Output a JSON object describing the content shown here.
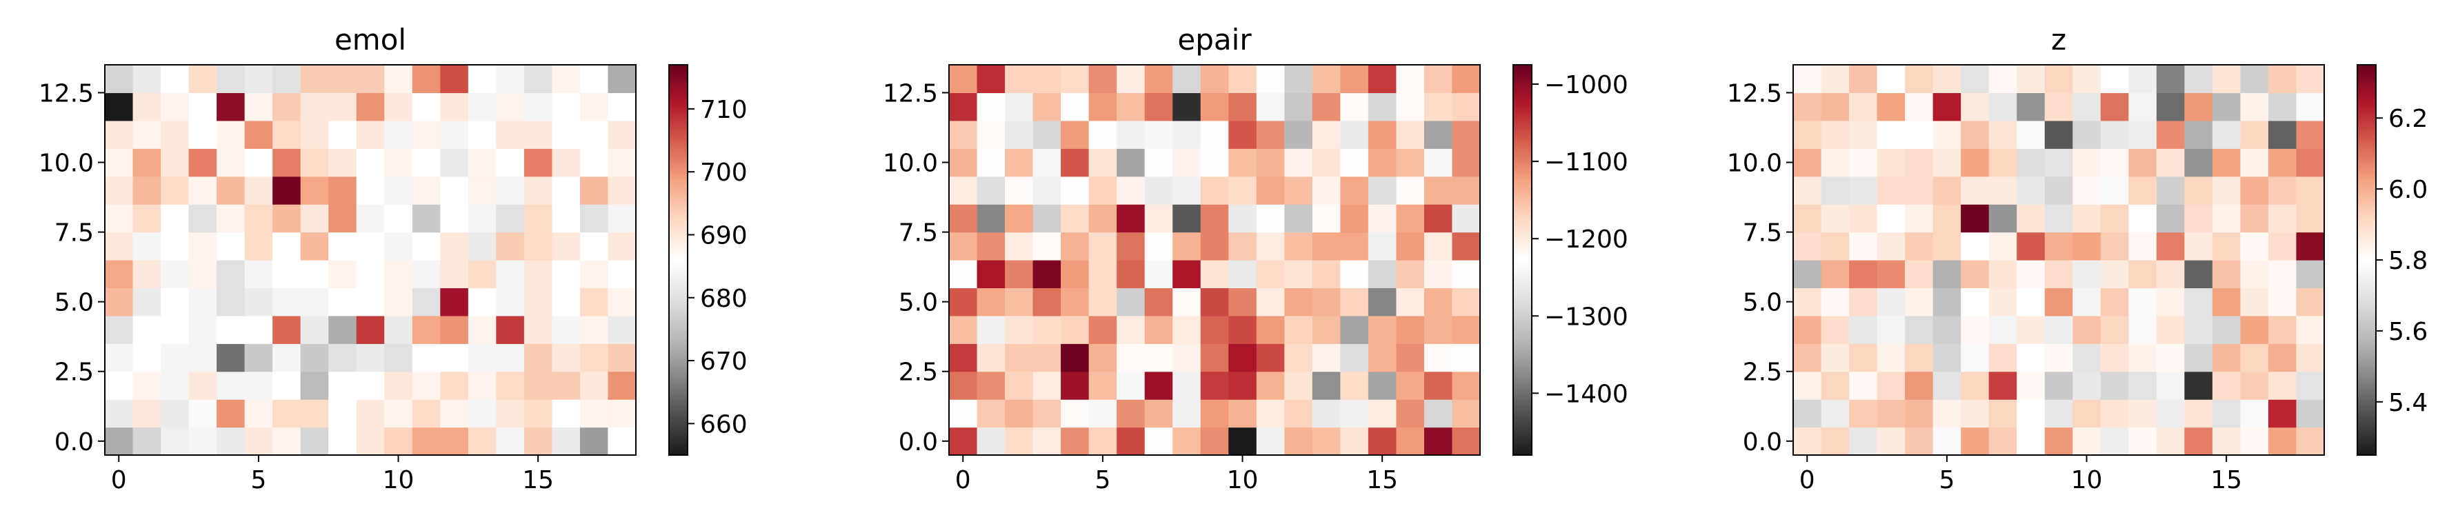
{
  "chart_data": [
    {
      "type": "heatmap",
      "title": "emol",
      "xlabel": "",
      "ylabel": "",
      "x_ticks": [
        "0",
        "5",
        "10",
        "15"
      ],
      "y_ticks": [
        "0.0",
        "2.5",
        "5.0",
        "7.5",
        "10.0",
        "12.5"
      ],
      "x_range": [
        -0.5,
        18.5
      ],
      "y_range": [
        -0.5,
        13.5
      ],
      "cell_grid": {
        "columns": 19,
        "rows": 14,
        "x_start": 0,
        "y_start": 0,
        "step": 1
      },
      "colormap": "RdGy_r",
      "colorbar": {
        "min": 655,
        "max": 717,
        "ticks": [
          "660",
          "670",
          "680",
          "690",
          "700",
          "710"
        ]
      },
      "values": [
        [
          672,
          678,
          683,
          684,
          682,
          690,
          688,
          678,
          686,
          690,
          693,
          698,
          698,
          692,
          684,
          694,
          682,
          670,
          686
        ],
        [
          682,
          690,
          682,
          685,
          700,
          688,
          692,
          692,
          686,
          690,
          688,
          692,
          688,
          684,
          690,
          692,
          686,
          688,
          688
        ],
        [
          686,
          688,
          684,
          690,
          684,
          684,
          686,
          674,
          686,
          686,
          690,
          688,
          692,
          688,
          692,
          694,
          694,
          690,
          700
        ],
        [
          684,
          686,
          684,
          684,
          665,
          676,
          684,
          676,
          680,
          682,
          680,
          686,
          686,
          684,
          684,
          694,
          690,
          692,
          694
        ],
        [
          680,
          686,
          686,
          684,
          686,
          686,
          704,
          682,
          672,
          708,
          682,
          698,
          700,
          688,
          708,
          690,
          684,
          688,
          682
        ],
        [
          696,
          682,
          686,
          684,
          680,
          682,
          684,
          684,
          686,
          686,
          688,
          680,
          712,
          686,
          684,
          690,
          686,
          692,
          688
        ],
        [
          698,
          690,
          684,
          688,
          680,
          684,
          686,
          686,
          688,
          686,
          688,
          684,
          690,
          692,
          684,
          690,
          686,
          688,
          686
        ],
        [
          690,
          684,
          686,
          688,
          686,
          692,
          686,
          696,
          686,
          686,
          684,
          686,
          690,
          682,
          694,
          692,
          690,
          686,
          690
        ],
        [
          688,
          692,
          686,
          680,
          688,
          692,
          696,
          690,
          700,
          684,
          686,
          676,
          686,
          684,
          680,
          692,
          686,
          680,
          684
        ],
        [
          690,
          696,
          692,
          688,
          696,
          690,
          716,
          698,
          700,
          686,
          684,
          688,
          686,
          688,
          684,
          690,
          686,
          696,
          690
        ],
        [
          688,
          698,
          690,
          702,
          688,
          686,
          702,
          692,
          690,
          686,
          688,
          686,
          682,
          688,
          686,
          702,
          690,
          686,
          688
        ],
        [
          690,
          688,
          690,
          686,
          688,
          700,
          692,
          690,
          686,
          690,
          684,
          688,
          684,
          686,
          690,
          690,
          686,
          686,
          690
        ],
        [
          655,
          690,
          688,
          686,
          714,
          688,
          694,
          690,
          690,
          700,
          690,
          686,
          690,
          684,
          688,
          684,
          686,
          688,
          686
        ],
        [
          678,
          682,
          686,
          692,
          680,
          682,
          680,
          694,
          694,
          694,
          688,
          700,
          706,
          686,
          684,
          680,
          688,
          686,
          672
        ]
      ]
    },
    {
      "type": "heatmap",
      "title": "epair",
      "xlabel": "",
      "ylabel": "",
      "x_ticks": [
        "0",
        "5",
        "10",
        "15"
      ],
      "y_ticks": [
        "0.0",
        "2.5",
        "5.0",
        "7.5",
        "10.0",
        "12.5"
      ],
      "x_range": [
        -0.5,
        18.5
      ],
      "y_range": [
        -0.5,
        13.5
      ],
      "cell_grid": {
        "columns": 19,
        "rows": 14,
        "x_start": 0,
        "y_start": 0,
        "step": 1
      },
      "colormap": "RdGy_r",
      "colorbar": {
        "min": -1480,
        "max": -975,
        "ticks": [
          "−1000",
          "−1100",
          "−1200",
          "−1300",
          "−1400"
        ]
      },
      "values": [
        [
          -1050,
          -1260,
          -1180,
          -1200,
          -1110,
          -1170,
          -1060,
          -1230,
          -1150,
          -1110,
          -1480,
          -1250,
          -1140,
          -1150,
          -1190,
          -1060,
          -1120,
          -1000,
          -1090
        ],
        [
          -1230,
          -1160,
          -1140,
          -1160,
          -1220,
          -1240,
          -1110,
          -1140,
          -1250,
          -1120,
          -1140,
          -1200,
          -1170,
          -1260,
          -1250,
          -1200,
          -1110,
          -1290,
          -1150
        ],
        [
          -1090,
          -1110,
          -1170,
          -1200,
          -1010,
          -1150,
          -1240,
          -1010,
          -1250,
          -1050,
          -1040,
          -1140,
          -1190,
          -1370,
          -1180,
          -1350,
          -1130,
          -1080,
          -1130
        ],
        [
          -1050,
          -1190,
          -1160,
          -1160,
          -980,
          -1140,
          -1220,
          -1220,
          -1210,
          -1090,
          -1020,
          -1060,
          -1180,
          -1210,
          -1280,
          -1140,
          -1110,
          -1220,
          -1230
        ],
        [
          -1150,
          -1250,
          -1190,
          -1180,
          -1170,
          -1100,
          -1200,
          -1140,
          -1200,
          -1080,
          -1060,
          -1120,
          -1170,
          -1150,
          -1350,
          -1140,
          -1120,
          -1140,
          -1130
        ],
        [
          -1070,
          -1130,
          -1150,
          -1090,
          -1130,
          -1180,
          -1300,
          -1090,
          -1220,
          -1060,
          -1100,
          -1200,
          -1130,
          -1140,
          -1170,
          -1380,
          -1200,
          -1140,
          -1170
        ],
        [
          -1230,
          -1020,
          -1100,
          -990,
          -1120,
          -1180,
          -1080,
          -1240,
          -1020,
          -1190,
          -1260,
          -1180,
          -1190,
          -1170,
          -1230,
          -1290,
          -1160,
          -1210,
          -1230
        ],
        [
          -1140,
          -1110,
          -1200,
          -1220,
          -1140,
          -1180,
          -1090,
          -1230,
          -1140,
          -1100,
          -1160,
          -1200,
          -1150,
          -1130,
          -1130,
          -1250,
          -1120,
          -1200,
          -1080
        ],
        [
          -1100,
          -1380,
          -1130,
          -1300,
          -1180,
          -1140,
          -1010,
          -1200,
          -1420,
          -1100,
          -1260,
          -1230,
          -1310,
          -1220,
          -1120,
          -1210,
          -1130,
          -1060,
          -1260
        ],
        [
          -1200,
          -1280,
          -1220,
          -1250,
          -1230,
          -1170,
          -1210,
          -1260,
          -1250,
          -1170,
          -1180,
          -1130,
          -1150,
          -1210,
          -1130,
          -1280,
          -1220,
          -1140,
          -1140
        ],
        [
          -1140,
          -1230,
          -1150,
          -1240,
          -1070,
          -1190,
          -1350,
          -1230,
          -1210,
          -1230,
          -1150,
          -1140,
          -1210,
          -1190,
          -1230,
          -1130,
          -1150,
          -1240,
          -1110
        ],
        [
          -1160,
          -1220,
          -1260,
          -1290,
          -1120,
          -1230,
          -1250,
          -1240,
          -1250,
          -1230,
          -1070,
          -1110,
          -1330,
          -1200,
          -1260,
          -1120,
          -1190,
          -1350,
          -1110
        ],
        [
          -1040,
          -1230,
          -1250,
          -1150,
          -1230,
          -1120,
          -1150,
          -1090,
          -1460,
          -1120,
          -1090,
          -1240,
          -1310,
          -1110,
          -1220,
          -1290,
          -1220,
          -1180,
          -1170
        ],
        [
          -1120,
          -1040,
          -1170,
          -1170,
          -1180,
          -1110,
          -1200,
          -1120,
          -1290,
          -1140,
          -1170,
          -1230,
          -1300,
          -1150,
          -1120,
          -1050,
          -1220,
          -1160,
          -1120
        ]
      ]
    },
    {
      "type": "heatmap",
      "title": "z",
      "xlabel": "",
      "ylabel": "",
      "x_ticks": [
        "0",
        "5",
        "10",
        "15"
      ],
      "y_ticks": [
        "0.0",
        "2.5",
        "5.0",
        "7.5",
        "10.0",
        "12.5"
      ],
      "x_range": [
        -0.5,
        18.5
      ],
      "y_range": [
        -0.5,
        13.5
      ],
      "cell_grid": {
        "columns": 19,
        "rows": 14,
        "x_start": 0,
        "y_start": 0,
        "step": 1
      },
      "colormap": "RdGy_r",
      "colorbar": {
        "min": 5.25,
        "max": 6.35,
        "ticks": [
          "5.4",
          "5.6",
          "5.8",
          "6.0",
          "6.2"
        ]
      },
      "values": [
        [
          5.88,
          5.92,
          5.72,
          5.86,
          5.95,
          5.78,
          6.02,
          5.94,
          5.8,
          6.04,
          5.84,
          5.74,
          5.82,
          5.86,
          6.08,
          5.86,
          5.82,
          6.02,
          5.94
        ],
        [
          5.66,
          5.74,
          5.94,
          5.96,
          5.98,
          5.84,
          5.86,
          5.92,
          5.8,
          5.72,
          5.92,
          5.88,
          5.86,
          5.74,
          5.88,
          5.7,
          5.78,
          6.22,
          5.64
        ],
        [
          5.84,
          5.92,
          5.82,
          5.9,
          6.04,
          5.7,
          5.92,
          6.18,
          5.82,
          5.62,
          5.72,
          5.66,
          5.7,
          5.76,
          5.3,
          5.9,
          5.94,
          5.88,
          5.7
        ],
        [
          5.96,
          5.86,
          5.92,
          5.84,
          5.92,
          5.66,
          5.78,
          5.9,
          5.8,
          5.82,
          5.7,
          5.88,
          5.84,
          5.82,
          5.66,
          5.98,
          5.92,
          6.0,
          5.88
        ],
        [
          6.0,
          5.9,
          5.72,
          5.76,
          5.68,
          5.64,
          5.82,
          5.76,
          5.86,
          5.74,
          5.96,
          5.92,
          5.78,
          5.88,
          5.7,
          5.66,
          6.02,
          5.94,
          5.84
        ],
        [
          5.88,
          5.82,
          5.9,
          5.74,
          5.84,
          5.6,
          5.8,
          5.86,
          5.8,
          6.04,
          5.76,
          5.94,
          5.78,
          5.84,
          5.7,
          6.02,
          5.86,
          5.82,
          5.94
        ],
        [
          5.58,
          6.0,
          6.08,
          6.06,
          5.9,
          5.56,
          5.96,
          5.88,
          5.82,
          5.9,
          5.74,
          5.86,
          5.92,
          5.88,
          5.4,
          5.96,
          5.84,
          5.82,
          5.62
        ],
        [
          5.9,
          5.92,
          5.82,
          5.86,
          5.94,
          5.92,
          5.8,
          5.84,
          6.14,
          6.0,
          6.02,
          5.94,
          5.82,
          6.08,
          5.86,
          5.92,
          5.82,
          5.9,
          6.3
        ],
        [
          5.92,
          5.86,
          5.88,
          5.8,
          5.84,
          5.92,
          6.34,
          5.5,
          5.88,
          5.7,
          5.88,
          5.92,
          5.8,
          5.6,
          5.9,
          5.84,
          5.96,
          5.88,
          5.92
        ],
        [
          5.86,
          5.7,
          5.72,
          5.9,
          5.9,
          5.94,
          5.86,
          5.86,
          5.72,
          5.66,
          5.82,
          5.78,
          5.92,
          5.64,
          5.92,
          5.86,
          6.0,
          5.94,
          5.92
        ],
        [
          6.0,
          5.84,
          5.82,
          5.88,
          5.9,
          5.86,
          6.02,
          5.92,
          5.68,
          5.7,
          5.84,
          5.82,
          5.98,
          5.88,
          5.5,
          6.02,
          5.84,
          6.02,
          6.08
        ],
        [
          5.92,
          5.88,
          5.86,
          5.8,
          5.8,
          5.84,
          5.96,
          5.88,
          5.78,
          5.38,
          5.66,
          5.72,
          5.74,
          6.06,
          5.56,
          5.72,
          5.92,
          5.4,
          6.06
        ],
        [
          5.96,
          5.98,
          5.88,
          6.02,
          5.82,
          6.24,
          5.86,
          5.72,
          5.5,
          5.9,
          5.72,
          6.1,
          5.76,
          5.42,
          6.04,
          5.58,
          5.84,
          5.66,
          5.78
        ],
        [
          5.82,
          5.86,
          5.96,
          5.8,
          5.92,
          5.88,
          5.7,
          5.82,
          5.86,
          5.92,
          5.86,
          5.8,
          5.74,
          5.46,
          5.68,
          5.88,
          5.64,
          5.94,
          5.9
        ]
      ]
    }
  ]
}
